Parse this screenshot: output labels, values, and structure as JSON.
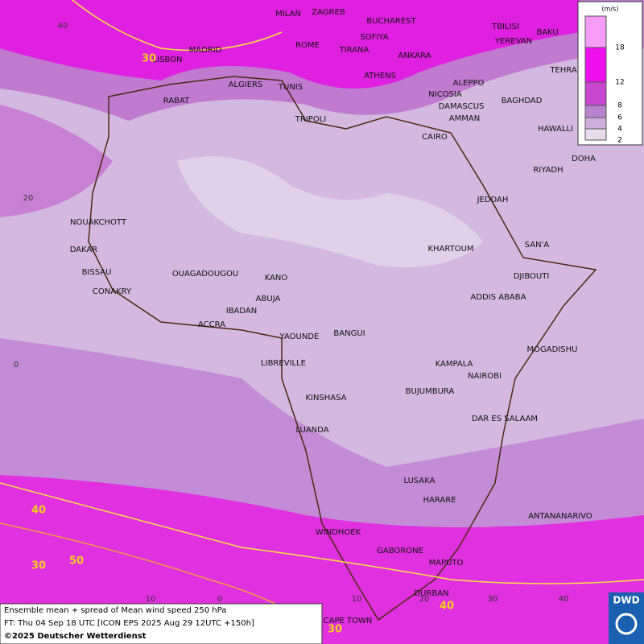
{
  "map": {
    "cities": [
      "MILAN",
      "ZAGREB",
      "BUCHAREST",
      "TBILISI",
      "BAKU",
      "MADRID",
      "ROME",
      "SOFIYA",
      "YEREVAN",
      "LISBON",
      "TIRANA",
      "ANKARA",
      "TEHRA",
      "ALGIERS",
      "TUNIS",
      "ATHENS",
      "ALEPPO",
      "RABAT",
      "NICOSIA",
      "BAGHDAD",
      "DAMASCUS",
      "AMMAN",
      "TRIPOLI",
      "HAWALLI",
      "CAIRO",
      "DOHA",
      "RIYADH",
      "JEDDAH",
      "NOUAKCHOTT",
      "SAN'A",
      "KHARTOUM",
      "DAKAR",
      "BISSAU",
      "OUAGADOUGOU",
      "KANO",
      "DJIBOUTI",
      "CONAKRY",
      "ABUJA",
      "ADDIS ABABA",
      "IBADAN",
      "ACCRA",
      "YAOUNDE",
      "BANGUI",
      "MOGADISHU",
      "LIBREVILLE",
      "KAMPALA",
      "NAIROBI",
      "KINSHASA",
      "BUJUMBURA",
      "DAR ES SALAAM",
      "LUANDA",
      "LUSAKA",
      "HARARE",
      "ANTANANARIVO",
      "WINDHOEK",
      "GABORONE",
      "MAPUTO",
      "DURBAN",
      "CAPE TOWN"
    ],
    "lat_labels": [
      "40",
      "20",
      "0"
    ],
    "lon_labels": [
      "10",
      "0",
      "10",
      "20",
      "30",
      "40"
    ],
    "contour_labels": [
      "30",
      "40",
      "50",
      "30",
      "40",
      "30"
    ]
  },
  "legend": {
    "unit": "(m/s)",
    "levels": [
      18,
      12,
      8,
      6,
      4,
      2
    ],
    "colors": [
      "#f49cf6",
      "#ee10ee",
      "#c748cf",
      "#b982cf",
      "#cdaedc",
      "#e8dcec"
    ]
  },
  "caption": {
    "line1": "Ensemble mean + spread of Mean wind speed 250 hPa",
    "line2": "FT: Thu 04 Sep 18 UTC [ICON EPS 2025 Aug 29 12UTC +150h]",
    "line3": "©2025 Deutscher Wetterdienst"
  },
  "logo": "DWD"
}
